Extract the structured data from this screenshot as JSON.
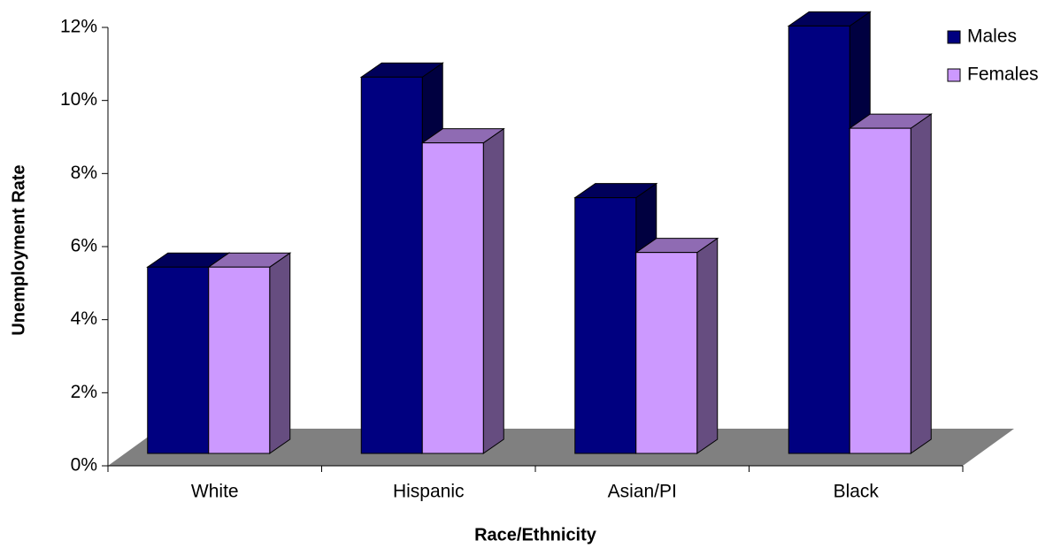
{
  "chart_data": {
    "type": "bar3d",
    "x_label": "Race/Ethnicity",
    "y_label": "Unemployment Rate",
    "categories": [
      "White",
      "Hispanic",
      "Asian/PI",
      "Black"
    ],
    "series": [
      {
        "name": "Males",
        "color": "#000080",
        "values": [
          5.1,
          10.3,
          7.0,
          11.7
        ]
      },
      {
        "name": "Females",
        "color": "#cc99ff",
        "values": [
          5.1,
          8.5,
          5.5,
          8.9
        ]
      }
    ],
    "ylim": [
      0,
      12
    ],
    "yticks": [
      {
        "value": 0,
        "label": "0%"
      },
      {
        "value": 2,
        "label": "2%"
      },
      {
        "value": 4,
        "label": "4%"
      },
      {
        "value": 6,
        "label": "6%"
      },
      {
        "value": 8,
        "label": "8%"
      },
      {
        "value": 10,
        "label": "10%"
      },
      {
        "value": 12,
        "label": "12%"
      }
    ],
    "legend": "top-right"
  }
}
